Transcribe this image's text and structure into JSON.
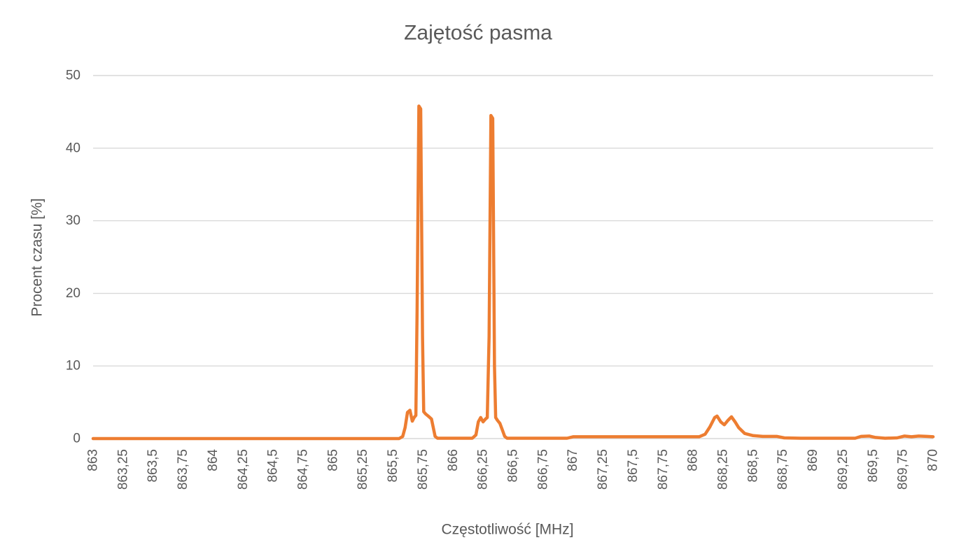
{
  "colors": {
    "background": "#FFFFFF",
    "text": "#595959",
    "grid": "#D9D9D9",
    "axis_line": "#D9D9D9",
    "line": "#ED7D31"
  },
  "chart_data": {
    "type": "line",
    "title": "Zajętość pasma",
    "xlabel": "Częstotliwość [MHz]",
    "ylabel": "Procent czasu [%]",
    "xlim": [
      863,
      870
    ],
    "ylim": [
      0,
      50
    ],
    "grid": true,
    "legend": "none",
    "y_ticks": [
      "0",
      "10",
      "20",
      "30",
      "40",
      "50"
    ],
    "x_ticks": [
      "863",
      "863,25",
      "863,5",
      "863,75",
      "864",
      "864,25",
      "864,5",
      "864,75",
      "865",
      "865,25",
      "865,5",
      "865,75",
      "866",
      "866,25",
      "866,5",
      "866,75",
      "867",
      "867,25",
      "867,5",
      "867,75",
      "868",
      "868,25",
      "868,5",
      "868,75",
      "869",
      "869,25",
      "869,5",
      "869,75",
      "870"
    ],
    "series": [
      {
        "name": "Zajętość pasma",
        "points": [
          [
            863.0,
            0
          ],
          [
            865.55,
            0
          ],
          [
            865.58,
            0.3
          ],
          [
            865.6,
            1.5
          ],
          [
            865.62,
            3.6
          ],
          [
            865.64,
            3.9
          ],
          [
            865.66,
            2.4
          ],
          [
            865.675,
            2.9
          ],
          [
            865.69,
            3.2
          ],
          [
            865.7,
            18
          ],
          [
            865.715,
            45.8
          ],
          [
            865.73,
            45.4
          ],
          [
            865.745,
            14
          ],
          [
            865.755,
            3.7
          ],
          [
            865.77,
            3.4
          ],
          [
            865.8,
            3.0
          ],
          [
            865.82,
            2.7
          ],
          [
            865.835,
            1.5
          ],
          [
            865.85,
            0.3
          ],
          [
            865.87,
            0.05
          ],
          [
            866.16,
            0.05
          ],
          [
            866.19,
            0.5
          ],
          [
            866.21,
            2.3
          ],
          [
            866.23,
            2.9
          ],
          [
            866.25,
            2.3
          ],
          [
            866.27,
            2.7
          ],
          [
            866.285,
            2.9
          ],
          [
            866.3,
            14
          ],
          [
            866.315,
            44.5
          ],
          [
            866.33,
            44.1
          ],
          [
            866.345,
            10
          ],
          [
            866.355,
            2.9
          ],
          [
            866.37,
            2.5
          ],
          [
            866.39,
            2.1
          ],
          [
            866.41,
            1.2
          ],
          [
            866.43,
            0.3
          ],
          [
            866.45,
            0.05
          ],
          [
            866.95,
            0.05
          ],
          [
            867.0,
            0.25
          ],
          [
            868.05,
            0.25
          ],
          [
            868.1,
            0.6
          ],
          [
            868.14,
            1.6
          ],
          [
            868.18,
            2.9
          ],
          [
            868.2,
            3.1
          ],
          [
            868.23,
            2.3
          ],
          [
            868.26,
            1.9
          ],
          [
            868.29,
            2.5
          ],
          [
            868.32,
            3.0
          ],
          [
            868.35,
            2.3
          ],
          [
            868.38,
            1.5
          ],
          [
            868.43,
            0.7
          ],
          [
            868.5,
            0.4
          ],
          [
            868.58,
            0.3
          ],
          [
            868.7,
            0.3
          ],
          [
            868.76,
            0.1
          ],
          [
            868.9,
            0.05
          ],
          [
            869.35,
            0.05
          ],
          [
            869.4,
            0.3
          ],
          [
            869.47,
            0.35
          ],
          [
            869.52,
            0.15
          ],
          [
            869.6,
            0.05
          ],
          [
            869.7,
            0.1
          ],
          [
            869.76,
            0.35
          ],
          [
            869.82,
            0.25
          ],
          [
            869.88,
            0.35
          ],
          [
            869.95,
            0.3
          ],
          [
            870.0,
            0.25
          ]
        ]
      }
    ]
  }
}
